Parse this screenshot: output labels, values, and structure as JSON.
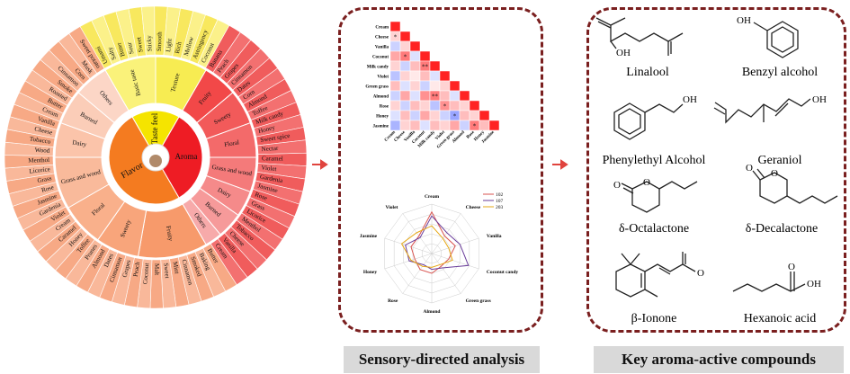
{
  "wheel": {
    "center": [
      "Taste feel",
      "Aroma",
      "Flavor"
    ],
    "mid": [
      "Basic taste",
      "Texture",
      "Fruity",
      "Sweety",
      "Floral",
      "Grass and wood",
      "Dairy",
      "Burned",
      "Others",
      "Fruity",
      "Sweety",
      "Floral",
      "Grass and wood",
      "Dairy",
      "Burned",
      "Others"
    ],
    "outer": [
      "Umami",
      "Salty",
      "Bitter",
      "Sour",
      "Sweet",
      "Sticky",
      "Smooth",
      "Light",
      "Rich",
      "Mellow",
      "Astringency",
      "Coconut",
      "Banana",
      "Peach",
      "Grapes",
      "Cinnamon",
      "Dates",
      "Corn",
      "Almond",
      "Toffee",
      "Milk candy",
      "Honey",
      "Sweet spice",
      "Nectar",
      "Caramel",
      "Violet",
      "Gardenia",
      "Jasmine",
      "Rose",
      "Grass",
      "Licorice",
      "Menthol",
      "Tobacco",
      "Cheese",
      "Vanilla",
      "Cream",
      "Butter",
      "Baking",
      "Smoked",
      "Cinnamon",
      "Mint",
      "Sweet",
      "Malt",
      "Coconut",
      "Peach",
      "Grapes",
      "Cinnamon",
      "Dates",
      "Almond",
      "Prunes",
      "Toffee",
      "Honey",
      "Caramel",
      "Cream",
      "Violet",
      "Gardenia",
      "Jasmine",
      "Rose",
      "Grass",
      "Licorice",
      "Menthol",
      "Wood",
      "Tobacco",
      "Cheese",
      "Vanilla",
      "Cream",
      "Butter",
      "Roasted",
      "Smoke",
      "Cinnamon",
      "Corn",
      "Musk",
      "Sweet potato"
    ]
  },
  "heatmap": {
    "labels": [
      "Cream",
      "Cheese",
      "Vanilla",
      "Coconut",
      "Milk candy",
      "Violet",
      "Green grass",
      "Almond",
      "Rose",
      "Honey",
      "Jasmine"
    ],
    "cells": [
      [
        1
      ],
      [
        0.2,
        1
      ],
      [
        -0.3,
        0.2,
        1
      ],
      [
        0.4,
        0.6,
        -0.2,
        1
      ],
      [
        0.2,
        -0.3,
        0.3,
        0.6,
        1
      ],
      [
        -0.4,
        0.2,
        0.1,
        0.3,
        -0.2,
        1
      ],
      [
        0.3,
        -0.2,
        0.2,
        -0.3,
        0.1,
        0.2,
        1
      ],
      [
        -0.3,
        0.4,
        -0.2,
        0.5,
        0.6,
        0.3,
        -0.2,
        1
      ],
      [
        0.2,
        -0.3,
        0.3,
        0.2,
        -0.4,
        0.5,
        0.3,
        0.2,
        1
      ],
      [
        -0.2,
        0.3,
        -0.3,
        0.4,
        0.2,
        -0.3,
        -0.6,
        0.3,
        0.2,
        1
      ],
      [
        -0.5,
        0.2,
        0.3,
        -0.2,
        0.3,
        0.2,
        0.4,
        -0.3,
        0.6,
        0.3,
        1
      ]
    ],
    "stars": [
      [
        1,
        0,
        "*"
      ],
      [
        3,
        1,
        "*"
      ],
      [
        4,
        3,
        "**"
      ],
      [
        7,
        4,
        "**"
      ],
      [
        8,
        5,
        "*"
      ],
      [
        9,
        6,
        "*"
      ],
      [
        10,
        8,
        "*"
      ]
    ]
  },
  "chart_data": {
    "type": "radar",
    "axes": [
      "Cream",
      "Cheese",
      "Vanilla",
      "Coconut candy",
      "Green grass",
      "Almond",
      "Rose",
      "Honey",
      "Jasmine",
      "Violet"
    ],
    "rmax": 5,
    "series": [
      {
        "name": "102",
        "color": "#d9534f",
        "values": [
          4.2,
          2.2,
          2.5,
          1.8,
          1.6,
          2.0,
          2.0,
          1.8,
          2.2,
          2.2
        ]
      },
      {
        "name": "107",
        "color": "#6a3d9a",
        "values": [
          3.8,
          2.6,
          3.0,
          3.9,
          1.8,
          1.6,
          1.4,
          2.4,
          2.8,
          2.0
        ]
      },
      {
        "name": "203",
        "color": "#e6a817",
        "values": [
          2.8,
          1.9,
          1.8,
          2.2,
          1.4,
          1.4,
          1.6,
          2.2,
          3.2,
          2.6
        ]
      }
    ]
  },
  "compounds": [
    "Linalool",
    "Benzyl alcohol",
    "Phenylethyl Alcohol",
    "Geraniol",
    "δ-Octalactone",
    "δ-Decalactone",
    "β-Ionone",
    "Hexanoic acid"
  ],
  "atom_labels": {
    "oh": "OH",
    "o": "O"
  },
  "captions": {
    "sensory": "Sensory-directed analysis",
    "compounds": "Key aroma-active compounds"
  },
  "colors": {
    "aroma": "#ee1c24",
    "flavor": "#f47b20",
    "taste": "#f5e400",
    "arrow": "#e0443e",
    "border": "#7a1f1f"
  }
}
